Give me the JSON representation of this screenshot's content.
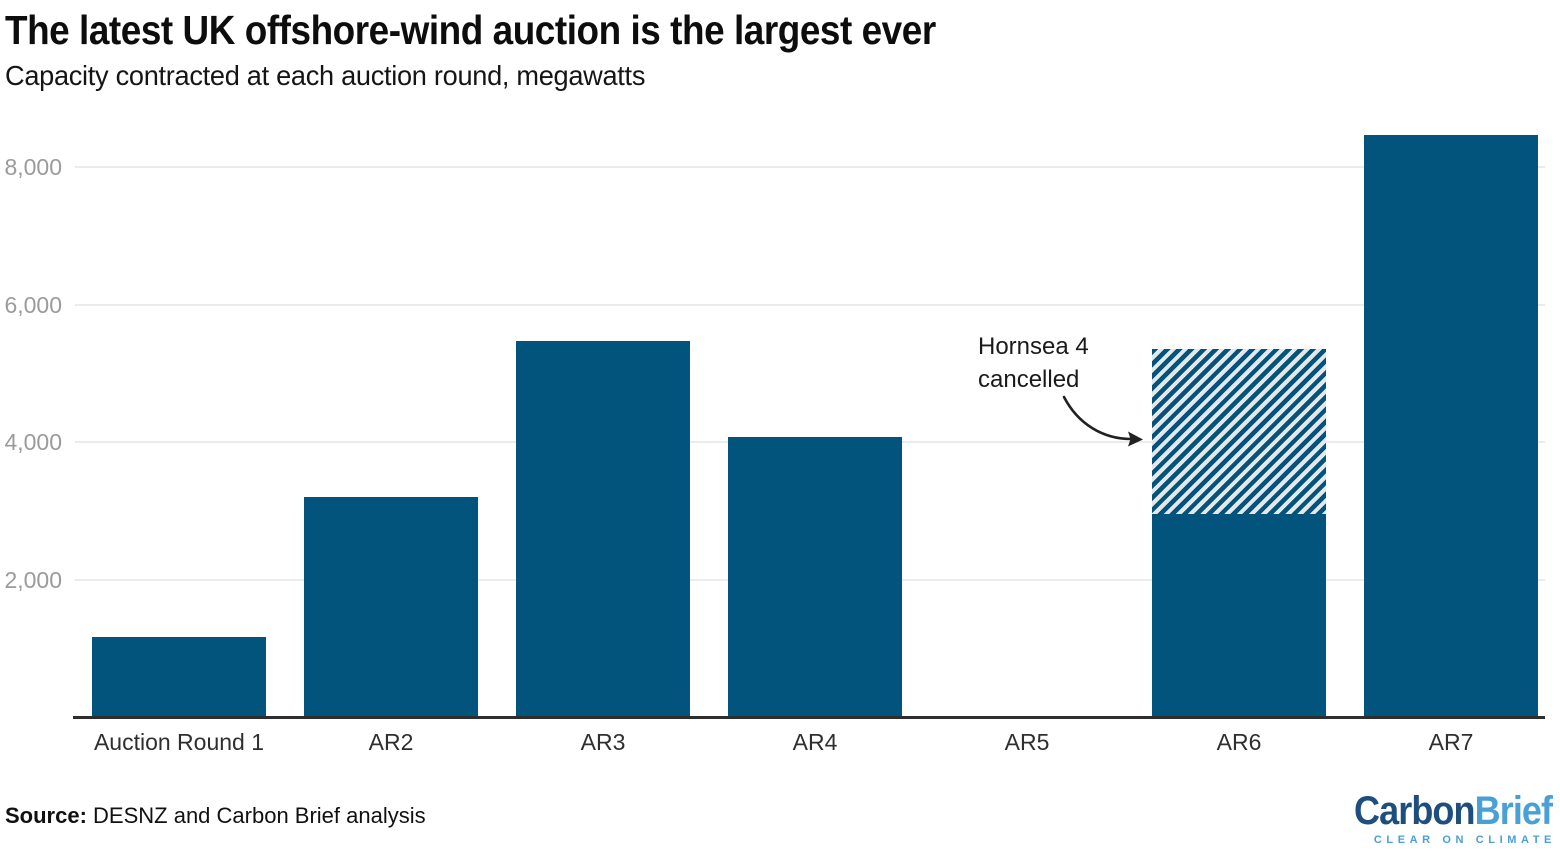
{
  "chart_data": {
    "type": "bar",
    "title": "The latest UK offshore-wind auction is the largest ever",
    "subtitle": "Capacity contracted at each auction round, megawatts",
    "unit": "megawatts",
    "categories": [
      "Auction Round 1",
      "AR2",
      "AR3",
      "AR4",
      "AR5",
      "AR6",
      "AR7"
    ],
    "values": [
      1160,
      3200,
      5470,
      4070,
      0,
      2950,
      8460
    ],
    "cancelled_overlay": {
      "category": "AR6",
      "value": 2400,
      "total_with_cancelled": 5350,
      "label": "Hornsea 4 cancelled"
    },
    "yticks": [
      {
        "value": 2000,
        "label": "2,000"
      },
      {
        "value": 4000,
        "label": "4,000"
      },
      {
        "value": 6000,
        "label": "6,000"
      },
      {
        "value": 8000,
        "label": "8,000"
      }
    ],
    "ylim": [
      0,
      8700
    ],
    "grid": true,
    "legend": "none",
    "annotation": {
      "line1": "Hornsea 4",
      "line2": "cancelled"
    },
    "colors": {
      "bar": "#02547c",
      "hatch_background": "#e5e7ea",
      "gridline": "#ebebeb",
      "axis_line": "#2e2e2e",
      "ytick_label": "#9b9b9b",
      "background": "#ffffff",
      "logo_navy": "#1d4e7e",
      "logo_blue": "#4aa0d6"
    }
  },
  "footer": {
    "source_label": "Source:",
    "source_text": " DESNZ and Carbon Brief analysis"
  },
  "logo": {
    "part1": "Carbon",
    "part2": "Brief",
    "tagline": "CLEAR ON CLIMATE"
  }
}
